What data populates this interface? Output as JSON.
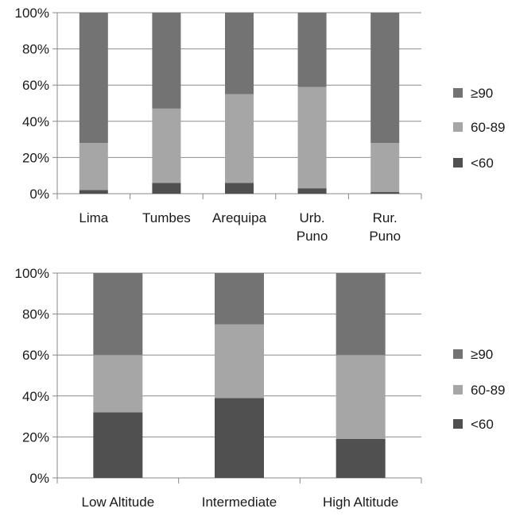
{
  "colors": {
    "lt60": "#505050",
    "c60_89": "#a6a6a6",
    "ge90": "#737373",
    "axis": "#888888",
    "grid": "#8c8c8c"
  },
  "chart_data": [
    {
      "type": "bar",
      "stacked": true,
      "normalized": true,
      "categories": [
        "Lima",
        "Tumbes",
        "Arequipa",
        "Urb.\nPuno",
        "Rur.\nPuno"
      ],
      "yticks": [
        "0%",
        "20%",
        "40%",
        "60%",
        "80%",
        "100%"
      ],
      "ylim": [
        0,
        100
      ],
      "grid": true,
      "legend": {
        "position": "right"
      },
      "series": [
        {
          "name": "<60",
          "color_key": "lt60",
          "values": [
            2,
            6,
            6,
            3,
            1
          ]
        },
        {
          "name": "60-89",
          "color_key": "c60_89",
          "values": [
            26,
            41,
            49,
            56,
            27
          ]
        },
        {
          "name": "≥90",
          "color_key": "ge90",
          "values": [
            72,
            53,
            45,
            41,
            72
          ]
        }
      ]
    },
    {
      "type": "bar",
      "stacked": true,
      "normalized": true,
      "categories": [
        "Low Altitude",
        "Intermediate",
        "High Altitude"
      ],
      "yticks": [
        "0%",
        "20%",
        "40%",
        "60%",
        "80%",
        "100%"
      ],
      "ylim": [
        0,
        100
      ],
      "grid": true,
      "legend": {
        "position": "right"
      },
      "series": [
        {
          "name": "<60",
          "color_key": "lt60",
          "values": [
            32,
            39,
            19
          ]
        },
        {
          "name": "60-89",
          "color_key": "c60_89",
          "values": [
            28,
            36,
            41
          ]
        },
        {
          "name": "≥90",
          "color_key": "ge90",
          "values": [
            40,
            25,
            40
          ]
        }
      ]
    }
  ]
}
